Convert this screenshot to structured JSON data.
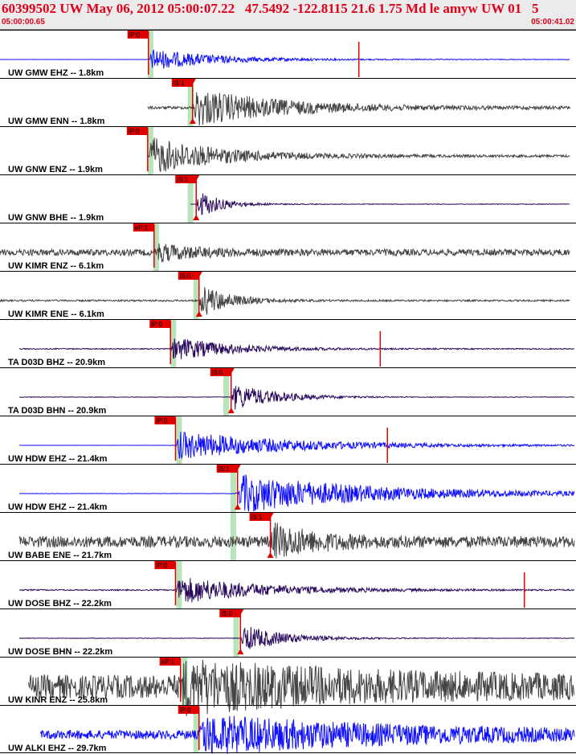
{
  "header": {
    "title": "60399502 UW May 06, 2012 05:00:07.22   47.5492 -122.8115 21.6 1.75 Md le amyw UW 01   5",
    "start_time": "05:00:00.65",
    "end_time": "05:00:41.02"
  },
  "colors": {
    "header_bg": "#ebebeb",
    "title": "#e0001a",
    "pick": "#e00000",
    "band": "#b9e3b9",
    "blue": "#1010ff",
    "gray": "#444444",
    "purple": "#2a0a5c"
  },
  "chart_data": {
    "type": "seismogram",
    "x_range": [
      0.65,
      41.02
    ],
    "x_unit": "seconds after 05:00",
    "origin_time": 7.22,
    "traces": [
      {
        "label": "UW GMW EHZ -- 1.8km",
        "color": "blue",
        "pick_label": "iP:0",
        "pick_kind": "P",
        "pick_time": 11.05,
        "band_time": 11.2,
        "start": 0.65,
        "end": 40.6,
        "amp": 14,
        "noise": 0.03,
        "env_decay": 4.5,
        "flat": true,
        "spike": 25.8
      },
      {
        "label": "UW GMW ENN -- 1.8km",
        "color": "gray",
        "pick_label": "iS:1",
        "pick_kind": "S",
        "pick_time": 14.15,
        "band_time": 14.0,
        "start": 11.0,
        "end": 40.6,
        "amp": 24,
        "noise": 0.07,
        "env_decay": 6.0,
        "flat": false,
        "spike": null
      },
      {
        "label": "UW GNW ENZ -- 1.9km",
        "color": "gray",
        "pick_label": "iP:0",
        "pick_kind": "P",
        "pick_time": 11.0,
        "band_time": 11.2,
        "start": 11.0,
        "end": 40.6,
        "amp": 24,
        "noise": 0.06,
        "env_decay": 5.0,
        "flat": false,
        "spike": null
      },
      {
        "label": "UW GNW BHE -- 1.9km",
        "color": "purple",
        "pick_label": "iS:1",
        "pick_kind": "S",
        "pick_time": 14.4,
        "band_time": 14.0,
        "start": 14.0,
        "end": 40.6,
        "amp": 20,
        "noise": 0.02,
        "env_decay": 1.6,
        "flat": true,
        "spike": null
      },
      {
        "label": "UW KIMR ENZ -- 6.1km",
        "color": "gray",
        "pick_label": "eP:1",
        "pick_kind": "P",
        "pick_time": 11.45,
        "band_time": 11.6,
        "start": 0.65,
        "end": 40.6,
        "amp": 10,
        "noise": 0.4,
        "env_decay": 3.0,
        "flat": false,
        "spike": null
      },
      {
        "label": "UW KIMR ENE -- 6.1km",
        "color": "gray",
        "pick_label": "iS:0",
        "pick_kind": "S",
        "pick_time": 14.6,
        "band_time": 14.4,
        "start": 0.65,
        "end": 40.6,
        "amp": 22,
        "noise": 0.05,
        "env_decay": 2.0,
        "flat": false,
        "spike": null
      },
      {
        "label": "TA D03D BHZ -- 20.9km",
        "color": "purple",
        "pick_label": "iP:0",
        "pick_kind": "P",
        "pick_time": 12.6,
        "band_time": 12.8,
        "start": 2.0,
        "end": 41.0,
        "amp": 16,
        "noise": 0.04,
        "env_decay": 4.0,
        "flat": false,
        "spike": 27.3
      },
      {
        "label": "TA D03D BHN -- 20.9km",
        "color": "purple",
        "pick_label": "iS:0",
        "pick_kind": "S",
        "pick_time": 16.85,
        "band_time": 16.5,
        "start": 2.0,
        "end": 41.0,
        "amp": 18,
        "noise": 0.02,
        "env_decay": 3.0,
        "flat": false,
        "spike": null
      },
      {
        "label": "UW HDW EHZ -- 21.4km",
        "color": "blue",
        "pick_label": "iP:0",
        "pick_kind": "P",
        "pick_time": 12.95,
        "band_time": 13.2,
        "start": 2.0,
        "end": 41.0,
        "amp": 18,
        "noise": 0.03,
        "env_decay": 8.0,
        "flat": true,
        "spike": 27.8
      },
      {
        "label": "UW HDW EHZ -- 21.4km",
        "color": "blue",
        "pick_label": "iS:1",
        "pick_kind": "S",
        "pick_time": 17.3,
        "band_time": 17.0,
        "start": 2.0,
        "end": 41.0,
        "amp": 24,
        "noise": 0.05,
        "env_decay": 9.0,
        "flat": true,
        "spike": null
      },
      {
        "label": "UW BABE ENE -- 21.7km",
        "color": "gray",
        "pick_label": "iS:1",
        "pick_kind": "S",
        "pick_time": 19.6,
        "band_time": 17.0,
        "start": 2.0,
        "end": 41.0,
        "amp": 20,
        "noise": 0.35,
        "env_decay": 3.0,
        "flat": false,
        "spike": null
      },
      {
        "label": "UW DOSE BHZ -- 22.2km",
        "color": "purple",
        "pick_label": "iP:0",
        "pick_kind": "P",
        "pick_time": 12.95,
        "band_time": 13.2,
        "start": 2.0,
        "end": 41.0,
        "amp": 18,
        "noise": 0.04,
        "env_decay": 6.0,
        "flat": false,
        "spike": 37.4
      },
      {
        "label": "UW DOSE BHN -- 22.2km",
        "color": "purple",
        "pick_label": "iS:0",
        "pick_kind": "S",
        "pick_time": 17.5,
        "band_time": 17.2,
        "start": 2.0,
        "end": 41.0,
        "amp": 18,
        "noise": 0.02,
        "env_decay": 3.0,
        "flat": false,
        "spike": null
      },
      {
        "label": "UW KINR ENZ -- 25.8km",
        "color": "gray",
        "pick_label": "eP:1",
        "pick_kind": "P",
        "pick_time": 13.3,
        "band_time": 13.6,
        "start": 2.65,
        "end": 41.0,
        "amp": 24,
        "noise": 0.6,
        "env_decay": 12.0,
        "flat": false,
        "spike": null
      },
      {
        "label": "UW ALKI EHZ -- 29.7km",
        "color": "blue",
        "pick_label": "iP:0",
        "pick_kind": "P",
        "pick_time": 14.6,
        "band_time": 14.4,
        "start": 3.5,
        "end": 41.0,
        "amp": 22,
        "noise": 0.25,
        "env_decay": 14.0,
        "flat": false,
        "spike": null
      }
    ]
  }
}
